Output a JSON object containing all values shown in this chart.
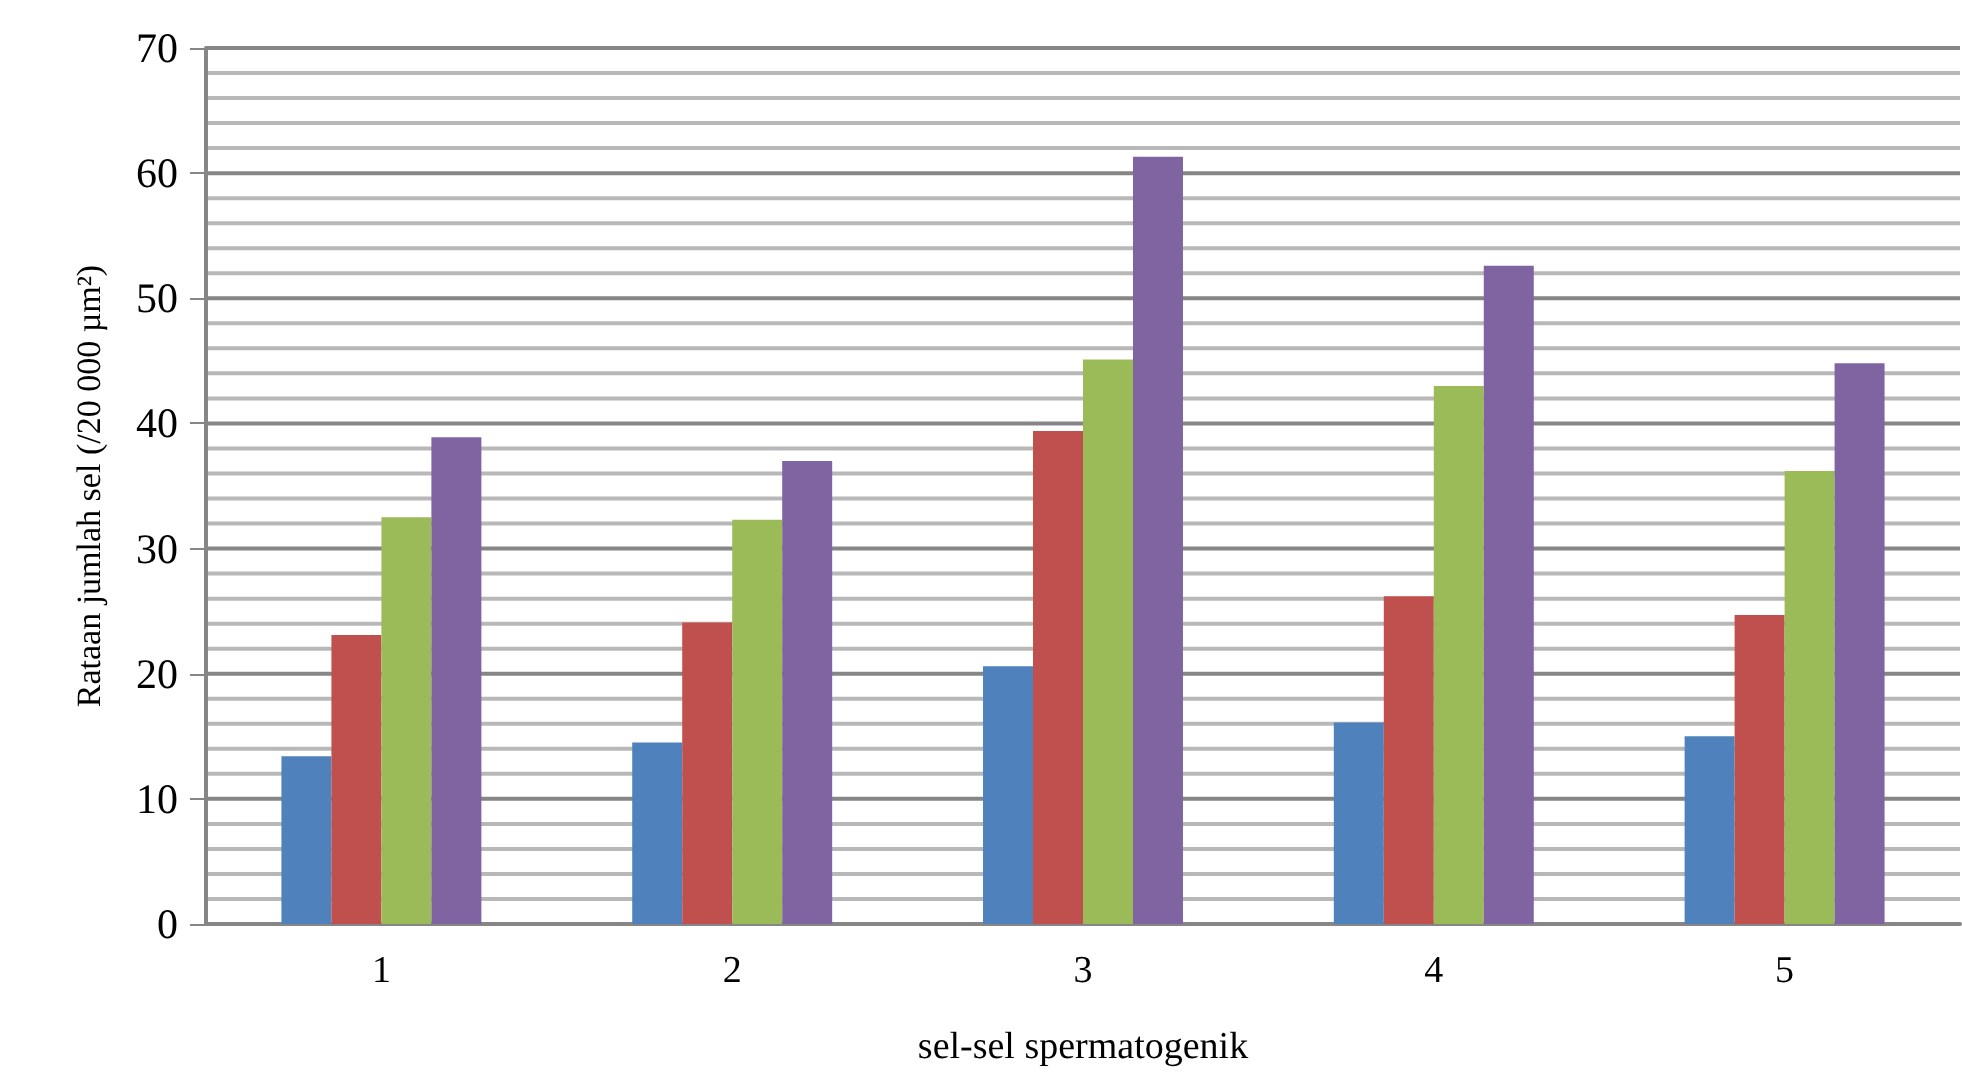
{
  "chart_data": {
    "type": "bar",
    "xlabel": "sel-sel spermatogenik",
    "ylabel": "Rataan jumlah sel (/20 000 µm²)",
    "categories": [
      "1",
      "2",
      "3",
      "4",
      "5"
    ],
    "series": [
      {
        "color": "#4f81bd",
        "values": [
          13.4,
          14.5,
          20.6,
          16.1,
          15.0
        ]
      },
      {
        "color": "#c0504d",
        "values": [
          23.1,
          24.1,
          39.4,
          26.2,
          24.7
        ]
      },
      {
        "color": "#9bbb59",
        "values": [
          32.5,
          32.3,
          45.1,
          43.0,
          36.2
        ]
      },
      {
        "color": "#8064a2",
        "values": [
          38.9,
          37.0,
          61.3,
          52.6,
          44.8
        ]
      }
    ],
    "ylim": [
      0,
      70
    ],
    "yticks": [
      0,
      {
        "value": 2,
        "label": null
      },
      {
        "value": 4,
        "label": null
      },
      {
        "value": 6,
        "label": null
      },
      {
        "value": 8,
        "label": null
      },
      10,
      {
        "value": 12,
        "label": null
      },
      {
        "value": 14,
        "label": null
      },
      {
        "value": 16,
        "label": null
      },
      {
        "value": 18,
        "label": null
      },
      20,
      {
        "value": 22,
        "label": null
      },
      {
        "value": 24,
        "label": null
      },
      {
        "value": 26,
        "label": null
      },
      {
        "value": 28,
        "label": null
      },
      30,
      {
        "value": 32,
        "label": null
      },
      {
        "value": 34,
        "label": null
      },
      {
        "value": 36,
        "label": null
      },
      {
        "value": 38,
        "label": null
      },
      40,
      {
        "value": 42,
        "label": null
      },
      {
        "value": 44,
        "label": null
      },
      {
        "value": 46,
        "label": null
      },
      {
        "value": 48,
        "label": null
      },
      50,
      {
        "value": 52,
        "label": null
      },
      {
        "value": 54,
        "label": null
      },
      {
        "value": 56,
        "label": null
      },
      {
        "value": 58,
        "label": null
      },
      60,
      {
        "value": 62,
        "label": null
      },
      {
        "value": 64,
        "label": null
      },
      {
        "value": 66,
        "label": null
      },
      {
        "value": 68,
        "label": null
      },
      70
    ],
    "grid": "y"
  }
}
